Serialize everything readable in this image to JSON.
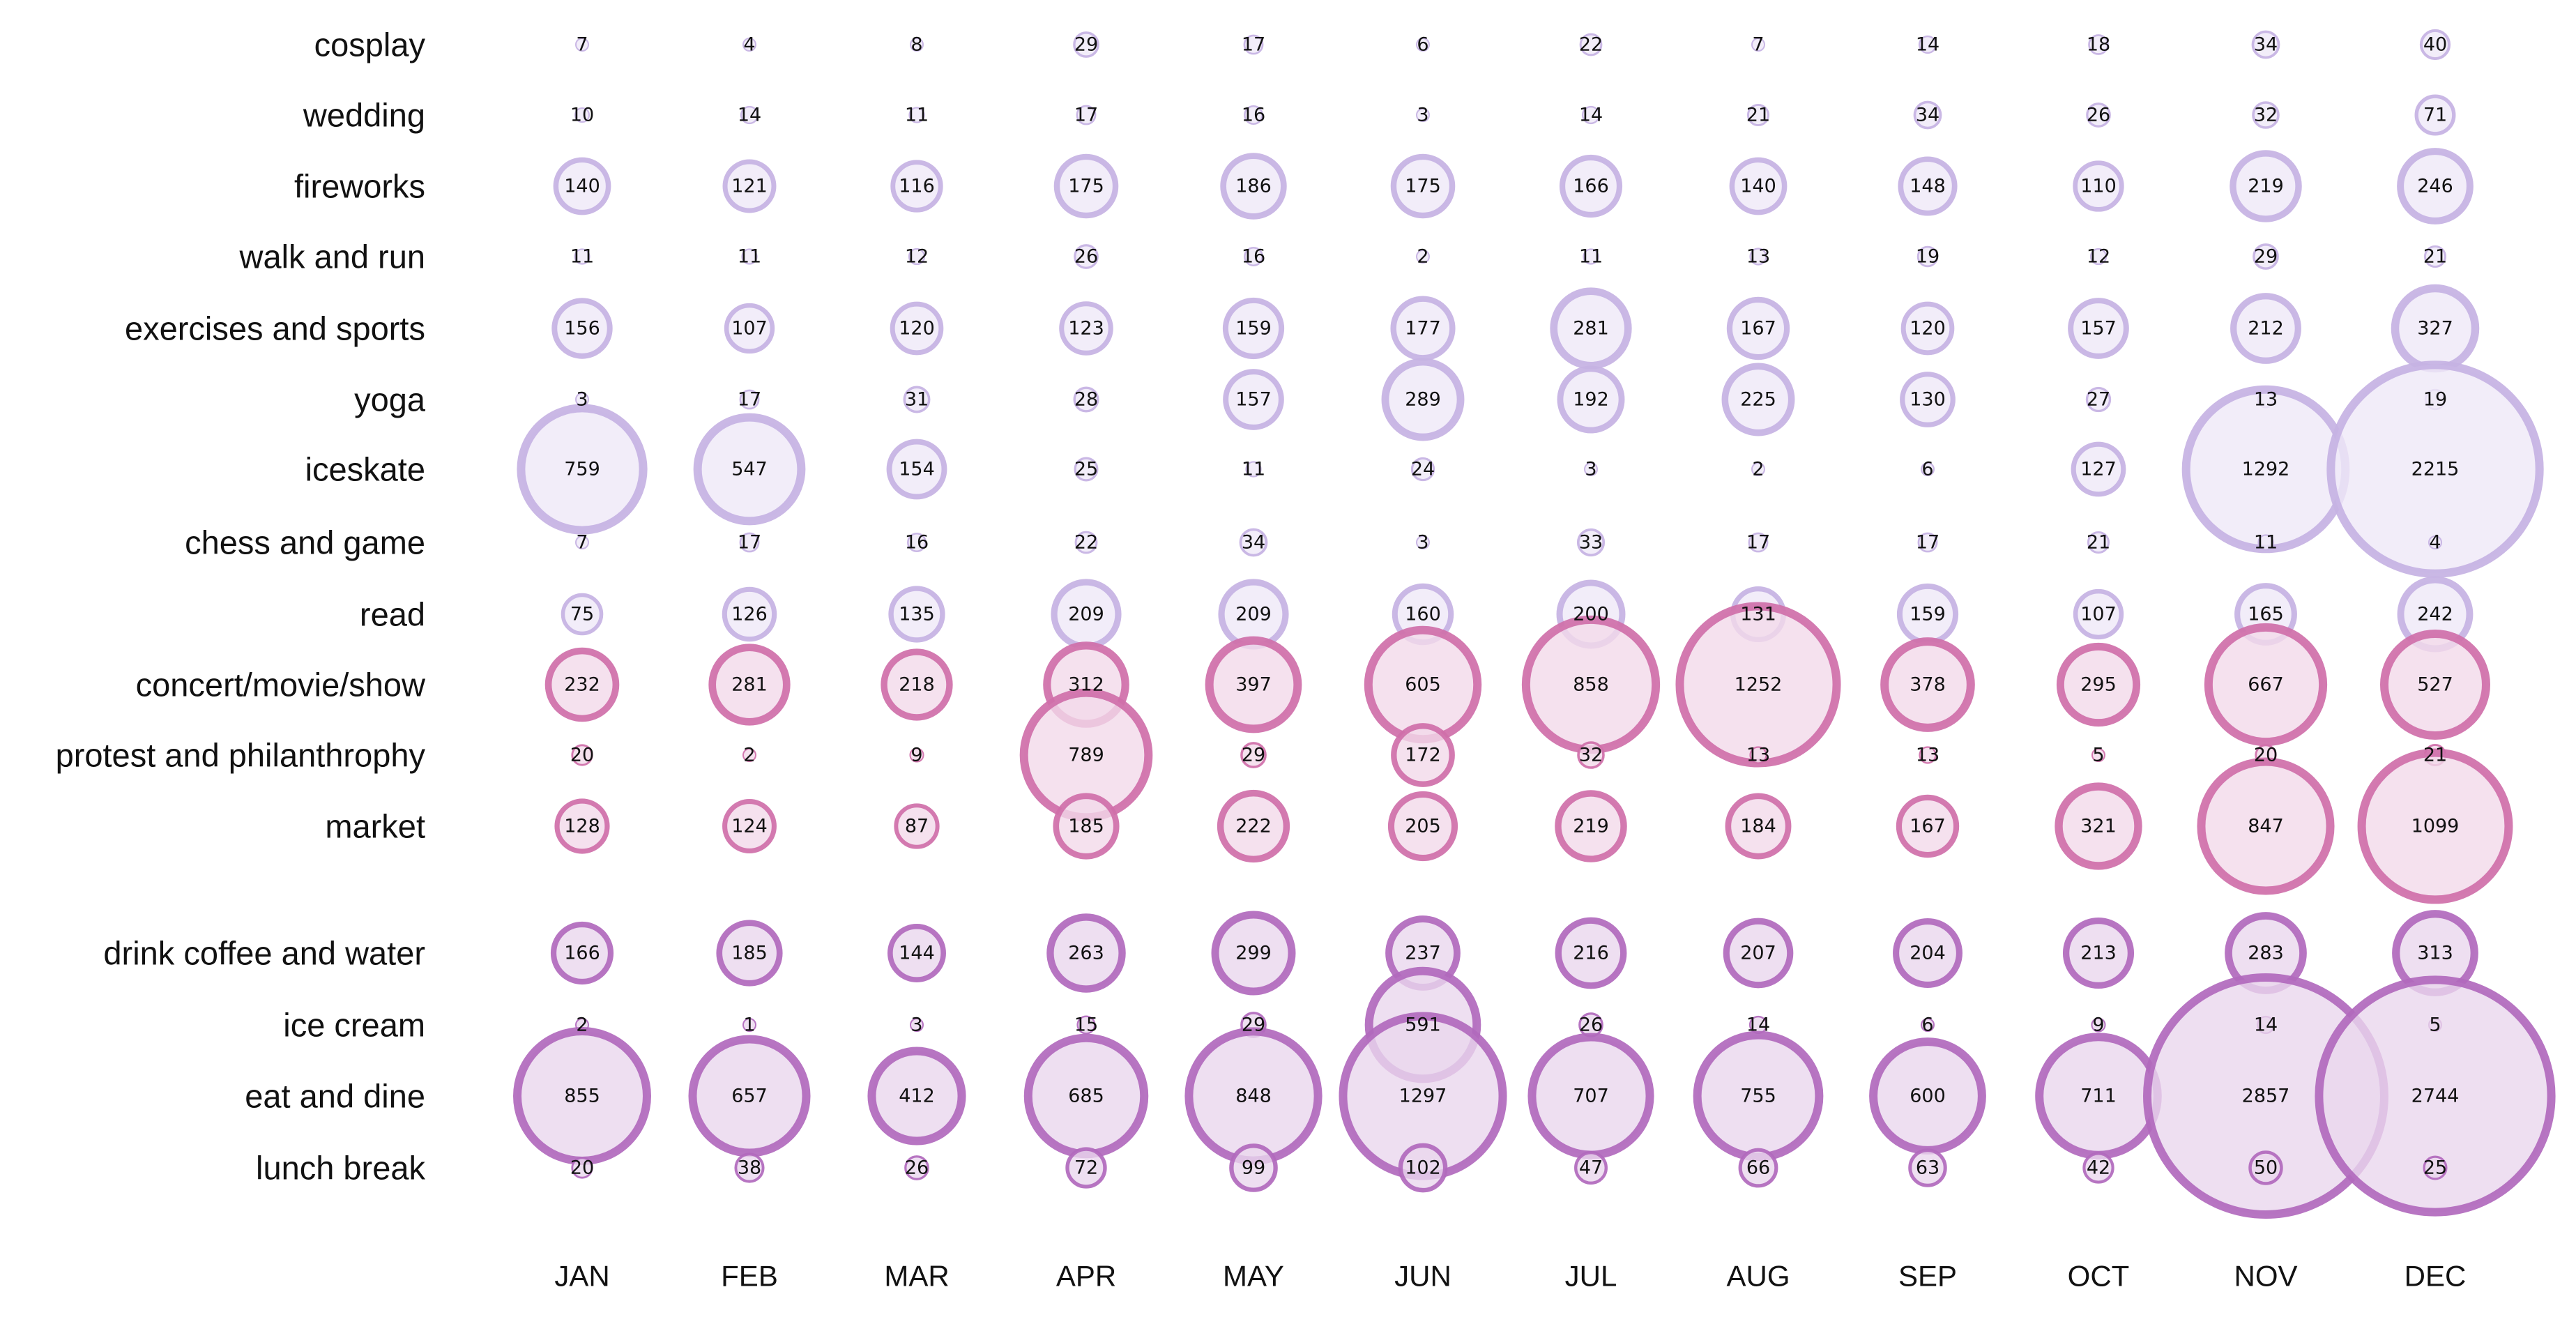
{
  "chart_data": {
    "type": "bubble-grid",
    "title": "",
    "xlabel": "",
    "ylabel": "",
    "categories": [
      "JAN",
      "FEB",
      "MAR",
      "APR",
      "MAY",
      "JUN",
      "JUL",
      "AUG",
      "SEP",
      "OCT",
      "NOV",
      "DEC"
    ],
    "groups": [
      {
        "name": "lavender",
        "colors": {
          "fill": "#efe8f7",
          "stroke": "#c6b2e3"
        },
        "series": [
          {
            "name": "cosplay",
            "values": [
              7,
              4,
              8,
              29,
              17,
              6,
              22,
              7,
              14,
              18,
              34,
              40
            ]
          },
          {
            "name": "wedding",
            "values": [
              10,
              14,
              11,
              17,
              16,
              3,
              14,
              21,
              34,
              26,
              32,
              71
            ]
          },
          {
            "name": "fireworks",
            "values": [
              140,
              121,
              116,
              175,
              186,
              175,
              166,
              140,
              148,
              110,
              219,
              246
            ]
          },
          {
            "name": "walk and run",
            "values": [
              11,
              11,
              12,
              26,
              16,
              2,
              11,
              13,
              19,
              12,
              29,
              21
            ]
          },
          {
            "name": "exercises and sports",
            "values": [
              156,
              107,
              120,
              123,
              159,
              177,
              281,
              167,
              120,
              157,
              212,
              327
            ]
          },
          {
            "name": "yoga",
            "values": [
              3,
              17,
              31,
              28,
              157,
              289,
              192,
              225,
              130,
              27,
              13,
              19
            ]
          },
          {
            "name": "iceskate",
            "values": [
              759,
              547,
              154,
              25,
              11,
              24,
              3,
              2,
              6,
              127,
              1292,
              2215
            ]
          },
          {
            "name": "chess and game",
            "values": [
              7,
              17,
              16,
              22,
              34,
              3,
              33,
              17,
              17,
              21,
              11,
              4
            ]
          },
          {
            "name": "read",
            "values": [
              75,
              126,
              135,
              209,
              209,
              160,
              200,
              131,
              159,
              107,
              165,
              242
            ]
          }
        ]
      },
      {
        "name": "pink",
        "colors": {
          "fill": "#f3d9ea",
          "stroke": "#cf6fa9"
        },
        "series": [
          {
            "name": "concert/movie/show",
            "values": [
              232,
              281,
              218,
              312,
              397,
              605,
              858,
              1252,
              378,
              295,
              667,
              527
            ]
          },
          {
            "name": "protest and philanthrophy",
            "values": [
              20,
              2,
              9,
              789,
              29,
              172,
              32,
              13,
              13,
              5,
              20,
              21
            ]
          },
          {
            "name": "market",
            "values": [
              128,
              124,
              87,
              185,
              222,
              205,
              219,
              184,
              167,
              321,
              847,
              1099
            ]
          }
        ]
      },
      {
        "name": "purple",
        "colors": {
          "fill": "#ead7ee",
          "stroke": "#b169bd"
        },
        "series": [
          {
            "name": "drink coffee and water",
            "values": [
              166,
              185,
              144,
              263,
              299,
              237,
              216,
              207,
              204,
              213,
              283,
              313
            ]
          },
          {
            "name": "ice cream",
            "values": [
              2,
              1,
              3,
              15,
              29,
              591,
              26,
              14,
              6,
              9,
              14,
              5
            ]
          },
          {
            "name": "eat and dine",
            "values": [
              855,
              657,
              412,
              685,
              848,
              1297,
              707,
              755,
              600,
              711,
              2857,
              2744
            ]
          },
          {
            "name": "lunch break",
            "values": [
              20,
              38,
              26,
              72,
              99,
              102,
              47,
              66,
              63,
              42,
              50,
              25
            ]
          }
        ]
      }
    ]
  }
}
